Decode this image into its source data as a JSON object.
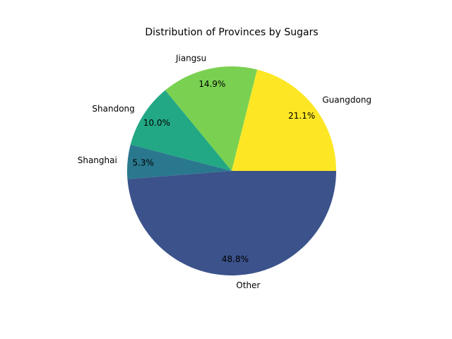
{
  "chart_data": {
    "type": "pie",
    "title": "Distribution of Provinces by Sugars",
    "categories": [
      "Guangdong",
      "Jiangsu",
      "Shandong",
      "Shanghai",
      "Other"
    ],
    "values": [
      21.1,
      14.9,
      10.0,
      5.3,
      48.8
    ],
    "value_labels": [
      "21.1%",
      "14.9%",
      "10.0%",
      "5.3%",
      "48.8%"
    ],
    "colors": [
      "#fde725",
      "#7ad151",
      "#22a884",
      "#2a788e",
      "#3b528b"
    ],
    "start_angle_deg": 0,
    "direction": "counterclockwise",
    "legend": "none"
  }
}
